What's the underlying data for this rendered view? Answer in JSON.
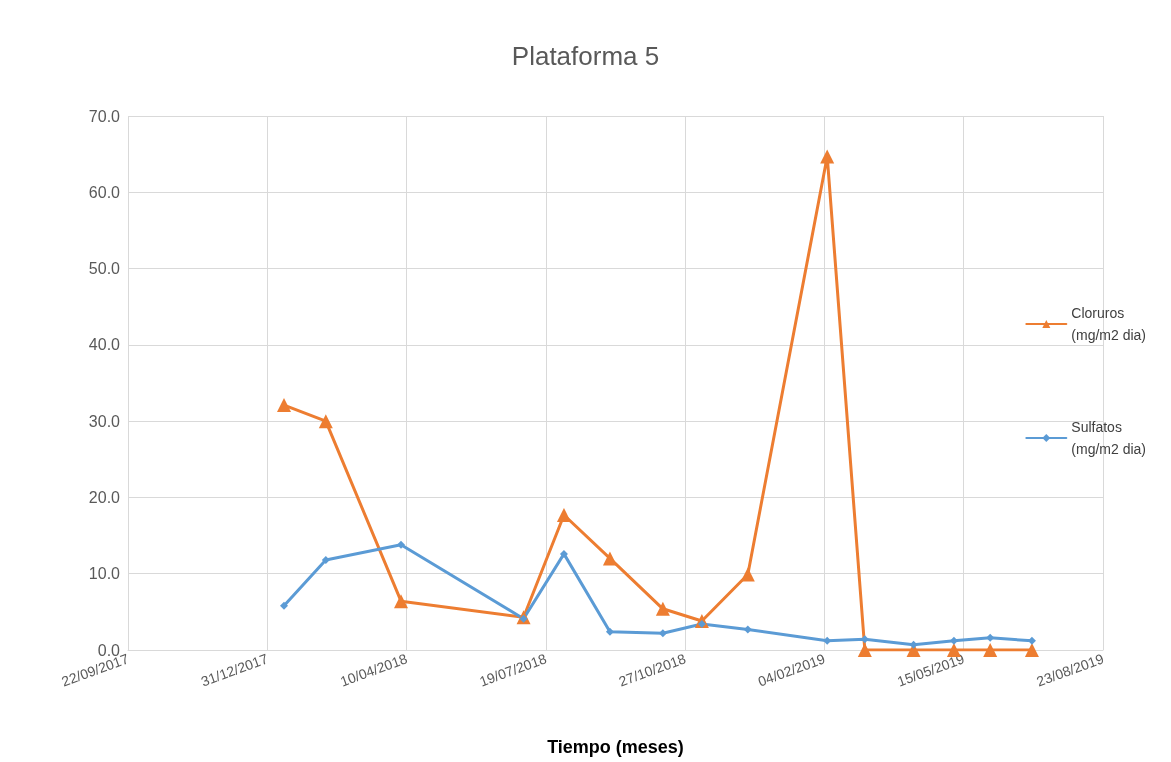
{
  "chart_data": {
    "type": "line",
    "title": "Plataforma 5",
    "xlabel": "Tiempo (meses)",
    "x": [
      "2018-01-12",
      "2018-02-11",
      "2018-04-06",
      "2018-07-03",
      "2018-08-01",
      "2018-09-03",
      "2018-10-11",
      "2018-11-08",
      "2018-12-11",
      "2019-02-06",
      "2019-03-05",
      "2019-04-09",
      "2019-05-08",
      "2019-06-03",
      "2019-07-03"
    ],
    "series": [
      {
        "name": "Cloruros\n(mg/m2 dia)",
        "color": "#ed7d31",
        "marker": "triangle",
        "values": [
          32.1,
          30.0,
          6.4,
          4.3,
          17.7,
          12.0,
          5.4,
          3.8,
          9.9,
          64.7,
          0.0,
          0.0,
          0.0,
          0.0,
          0.0
        ]
      },
      {
        "name": "Sulfatos\n(mg/m2 dia)",
        "color": "#5b9bd5",
        "marker": "diamond",
        "values": [
          5.8,
          11.8,
          13.8,
          4.1,
          12.6,
          2.4,
          2.2,
          3.4,
          2.7,
          1.2,
          1.4,
          0.7,
          1.2,
          1.6,
          1.2
        ]
      }
    ],
    "xlim": [
      "2017-09-22",
      "2019-08-23"
    ],
    "xticks": [
      {
        "value": "2017-09-22",
        "label": "22/09/2017"
      },
      {
        "value": "2017-12-31",
        "label": "31/12/2017"
      },
      {
        "value": "2018-04-10",
        "label": "10/04/2018"
      },
      {
        "value": "2018-07-19",
        "label": "19/07/2018"
      },
      {
        "value": "2018-10-27",
        "label": "27/10/2018"
      },
      {
        "value": "2019-02-04",
        "label": "04/02/2019"
      },
      {
        "value": "2019-05-15",
        "label": "15/05/2019"
      },
      {
        "value": "2019-08-23",
        "label": "23/08/2019"
      }
    ],
    "ylim": [
      0,
      70
    ],
    "yticks": [
      {
        "value": 0,
        "label": "0.0"
      },
      {
        "value": 10,
        "label": "10.0"
      },
      {
        "value": 20,
        "label": "20.0"
      },
      {
        "value": 30,
        "label": "30.0"
      },
      {
        "value": 40,
        "label": "40.0"
      },
      {
        "value": 50,
        "label": "50.0"
      },
      {
        "value": 60,
        "label": "60.0"
      },
      {
        "value": 70,
        "label": "70.0"
      }
    ],
    "grid": true,
    "legend": "right",
    "line_style": "solid"
  }
}
